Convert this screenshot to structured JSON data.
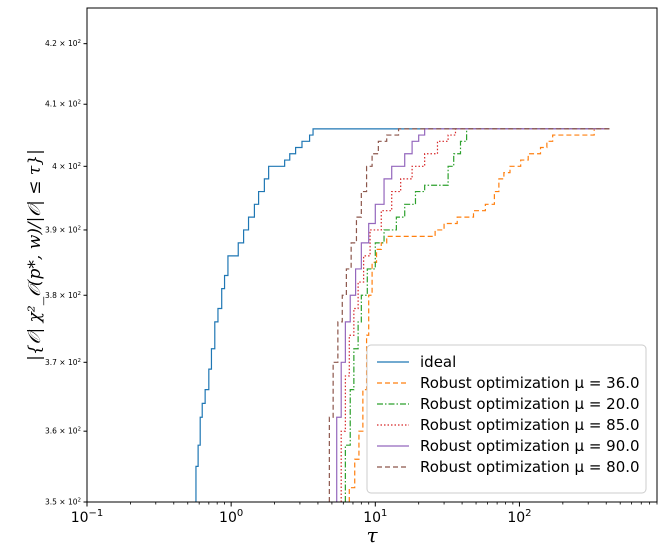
{
  "chart_data": {
    "type": "line",
    "step": true,
    "xscale": "log",
    "yscale": "log",
    "xlim": [
      0.1,
      900
    ],
    "ylim": [
      350,
      426
    ],
    "xlabel": "τ",
    "ylabel": "|{𝒪| χ²_𝒪(p*, w)/|𝒪| ≤ τ}|",
    "x_ticks": [
      {
        "value": 0.1,
        "base": "10",
        "exp": "−1"
      },
      {
        "value": 1,
        "base": "10",
        "exp": "0"
      },
      {
        "value": 10,
        "base": "10",
        "exp": "1"
      },
      {
        "value": 100,
        "base": "10",
        "exp": "2"
      }
    ],
    "y_ticks": [
      {
        "value": 350,
        "text": "3.5 × 10",
        "exp": "2"
      },
      {
        "value": 360,
        "text": "3.6 × 10",
        "exp": "2"
      },
      {
        "value": 370,
        "text": "3.7 × 10",
        "exp": "2"
      },
      {
        "value": 380,
        "text": "3.8 × 10",
        "exp": "2"
      },
      {
        "value": 390,
        "text": "3.9 × 10",
        "exp": "2"
      },
      {
        "value": 400,
        "text": "4 × 10",
        "exp": "2"
      },
      {
        "value": 410,
        "text": "4.1 × 10",
        "exp": "2"
      },
      {
        "value": 420,
        "text": "4.2 × 10",
        "exp": "2"
      }
    ],
    "legend_position": "lower-right",
    "series": [
      {
        "name": "ideal",
        "color": "#1f77b4",
        "dash": "",
        "points": [
          [
            0.57,
            350
          ],
          [
            0.57,
            355
          ],
          [
            0.59,
            355
          ],
          [
            0.59,
            358
          ],
          [
            0.61,
            358
          ],
          [
            0.61,
            362
          ],
          [
            0.63,
            362
          ],
          [
            0.63,
            364
          ],
          [
            0.66,
            364
          ],
          [
            0.66,
            366
          ],
          [
            0.7,
            366
          ],
          [
            0.7,
            369
          ],
          [
            0.73,
            369
          ],
          [
            0.73,
            372
          ],
          [
            0.77,
            372
          ],
          [
            0.77,
            376
          ],
          [
            0.81,
            376
          ],
          [
            0.81,
            378
          ],
          [
            0.86,
            378
          ],
          [
            0.86,
            381
          ],
          [
            0.9,
            381
          ],
          [
            0.9,
            383
          ],
          [
            0.95,
            383
          ],
          [
            0.95,
            386
          ],
          [
            1.12,
            386
          ],
          [
            1.12,
            388
          ],
          [
            1.22,
            388
          ],
          [
            1.22,
            390
          ],
          [
            1.32,
            390
          ],
          [
            1.32,
            392
          ],
          [
            1.45,
            392
          ],
          [
            1.45,
            394
          ],
          [
            1.55,
            394
          ],
          [
            1.55,
            396
          ],
          [
            1.7,
            396
          ],
          [
            1.7,
            398
          ],
          [
            1.82,
            398
          ],
          [
            1.82,
            400
          ],
          [
            2.35,
            400
          ],
          [
            2.35,
            401
          ],
          [
            2.55,
            401
          ],
          [
            2.55,
            402
          ],
          [
            2.8,
            402
          ],
          [
            2.8,
            403
          ],
          [
            3.1,
            403
          ],
          [
            3.1,
            404
          ],
          [
            3.5,
            404
          ],
          [
            3.5,
            405
          ],
          [
            3.7,
            405
          ],
          [
            3.7,
            406
          ],
          [
            420,
            406
          ]
        ]
      },
      {
        "name": "Robust optimization μ = 36.0",
        "color": "#ff7f0e",
        "dash": "5,3",
        "points": [
          [
            6.6,
            350
          ],
          [
            6.6,
            352
          ],
          [
            7.2,
            352
          ],
          [
            7.2,
            356
          ],
          [
            7.7,
            356
          ],
          [
            7.7,
            360
          ],
          [
            8.2,
            360
          ],
          [
            8.2,
            366
          ],
          [
            8.7,
            366
          ],
          [
            8.7,
            374
          ],
          [
            9.0,
            374
          ],
          [
            9.0,
            380
          ],
          [
            9.5,
            380
          ],
          [
            9.5,
            385
          ],
          [
            10.2,
            385
          ],
          [
            10.2,
            387
          ],
          [
            11.0,
            387
          ],
          [
            11.0,
            388
          ],
          [
            12.0,
            388
          ],
          [
            12.0,
            389
          ],
          [
            26.0,
            389
          ],
          [
            26.0,
            390
          ],
          [
            30.0,
            390
          ],
          [
            30.0,
            391
          ],
          [
            37.0,
            391
          ],
          [
            37.0,
            392
          ],
          [
            48.0,
            392
          ],
          [
            48.0,
            393
          ],
          [
            58.0,
            393
          ],
          [
            58.0,
            394
          ],
          [
            67.0,
            394
          ],
          [
            67.0,
            396
          ],
          [
            72.0,
            396
          ],
          [
            72.0,
            398
          ],
          [
            78.0,
            398
          ],
          [
            78.0,
            399
          ],
          [
            86.0,
            399
          ],
          [
            86.0,
            400
          ],
          [
            102.0,
            400
          ],
          [
            102.0,
            401
          ],
          [
            115.0,
            401
          ],
          [
            115.0,
            402
          ],
          [
            140.0,
            402
          ],
          [
            140.0,
            403
          ],
          [
            155.0,
            403
          ],
          [
            155.0,
            404
          ],
          [
            170.0,
            404
          ],
          [
            170.0,
            405
          ],
          [
            330.0,
            405
          ],
          [
            330.0,
            406
          ],
          [
            420,
            406
          ]
        ]
      },
      {
        "name": "Robust optimization μ = 20.0",
        "color": "#2ca02c",
        "dash": "6,2,1.5,2",
        "points": [
          [
            6.2,
            350
          ],
          [
            6.2,
            358
          ],
          [
            6.7,
            358
          ],
          [
            6.7,
            366
          ],
          [
            7.1,
            366
          ],
          [
            7.1,
            372
          ],
          [
            7.6,
            372
          ],
          [
            7.6,
            376
          ],
          [
            8.0,
            376
          ],
          [
            8.0,
            380
          ],
          [
            8.8,
            380
          ],
          [
            8.8,
            384
          ],
          [
            10.0,
            384
          ],
          [
            10.0,
            388
          ],
          [
            11.5,
            388
          ],
          [
            11.5,
            390
          ],
          [
            14.0,
            390
          ],
          [
            14.0,
            392
          ],
          [
            16.0,
            392
          ],
          [
            16.0,
            394
          ],
          [
            19.0,
            394
          ],
          [
            19.0,
            396
          ],
          [
            22.0,
            396
          ],
          [
            22.0,
            397
          ],
          [
            32.0,
            397
          ],
          [
            32.0,
            400
          ],
          [
            35.0,
            400
          ],
          [
            35.0,
            402
          ],
          [
            39.0,
            402
          ],
          [
            39.0,
            404
          ],
          [
            43.0,
            404
          ],
          [
            43.0,
            406
          ],
          [
            420,
            406
          ]
        ]
      },
      {
        "name": "Robust optimization μ = 85.0",
        "color": "#d62728",
        "dash": "1.5,2",
        "points": [
          [
            5.8,
            350
          ],
          [
            5.8,
            360
          ],
          [
            6.2,
            360
          ],
          [
            6.2,
            368
          ],
          [
            6.6,
            368
          ],
          [
            6.6,
            374
          ],
          [
            7.1,
            374
          ],
          [
            7.1,
            378
          ],
          [
            7.6,
            378
          ],
          [
            7.6,
            382
          ],
          [
            8.3,
            382
          ],
          [
            8.3,
            386
          ],
          [
            9.2,
            386
          ],
          [
            9.2,
            390
          ],
          [
            11.0,
            390
          ],
          [
            11.0,
            393
          ],
          [
            13.0,
            393
          ],
          [
            13.0,
            396
          ],
          [
            15.0,
            396
          ],
          [
            15.0,
            398
          ],
          [
            18.0,
            398
          ],
          [
            18.0,
            400
          ],
          [
            22.0,
            400
          ],
          [
            22.0,
            402
          ],
          [
            27.0,
            402
          ],
          [
            27.0,
            404
          ],
          [
            32.0,
            404
          ],
          [
            32.0,
            405
          ],
          [
            36.0,
            405
          ],
          [
            36.0,
            406
          ],
          [
            420,
            406
          ]
        ]
      },
      {
        "name": "Robust optimization μ = 90.0",
        "color": "#9467bd",
        "dash": "",
        "points": [
          [
            5.4,
            350
          ],
          [
            5.4,
            362
          ],
          [
            5.8,
            362
          ],
          [
            5.8,
            370
          ],
          [
            6.2,
            370
          ],
          [
            6.2,
            376
          ],
          [
            6.7,
            376
          ],
          [
            6.7,
            380
          ],
          [
            7.3,
            380
          ],
          [
            7.3,
            384
          ],
          [
            8.0,
            384
          ],
          [
            8.0,
            388
          ],
          [
            9.0,
            388
          ],
          [
            9.0,
            391
          ],
          [
            10.0,
            391
          ],
          [
            10.0,
            394
          ],
          [
            11.5,
            394
          ],
          [
            11.5,
            398
          ],
          [
            13.0,
            398
          ],
          [
            13.0,
            400
          ],
          [
            16.0,
            400
          ],
          [
            16.0,
            402
          ],
          [
            18.0,
            402
          ],
          [
            18.0,
            404
          ],
          [
            20.0,
            404
          ],
          [
            20.0,
            405
          ],
          [
            22.0,
            405
          ],
          [
            22.0,
            406
          ],
          [
            420,
            406
          ]
        ]
      },
      {
        "name": "Robust optimization μ = 80.0",
        "color": "#8c564b",
        "dash": "5,3",
        "points": [
          [
            4.8,
            350
          ],
          [
            4.8,
            362
          ],
          [
            5.1,
            362
          ],
          [
            5.1,
            370
          ],
          [
            5.5,
            370
          ],
          [
            5.5,
            376
          ],
          [
            5.9,
            376
          ],
          [
            5.9,
            380
          ],
          [
            6.3,
            380
          ],
          [
            6.3,
            384
          ],
          [
            6.8,
            384
          ],
          [
            6.8,
            388
          ],
          [
            7.4,
            388
          ],
          [
            7.4,
            392
          ],
          [
            8.0,
            392
          ],
          [
            8.0,
            396
          ],
          [
            8.7,
            396
          ],
          [
            8.7,
            400
          ],
          [
            9.5,
            400
          ],
          [
            9.5,
            402
          ],
          [
            10.5,
            402
          ],
          [
            10.5,
            404
          ],
          [
            12.0,
            404
          ],
          [
            12.0,
            405
          ],
          [
            14.5,
            405
          ],
          [
            14.5,
            406
          ],
          [
            420,
            406
          ]
        ]
      }
    ]
  }
}
